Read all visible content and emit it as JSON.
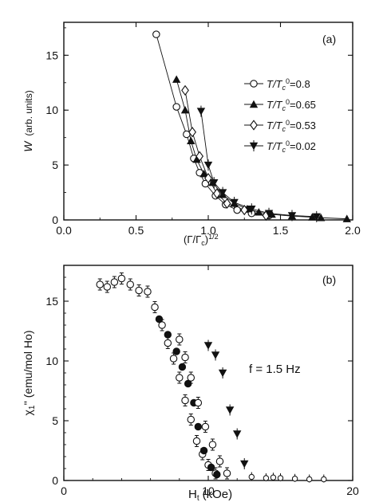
{
  "chart_data": [
    {
      "type": "line",
      "panel_label": "(a)",
      "xlabel": "(Γ/Γ",
      "xlabel_sub": "c",
      "xlabel_sup": "1/2",
      "ylabel": "W",
      "ylabel_unit": "(arb. units)",
      "xlim": [
        0.0,
        2.0
      ],
      "ylim": [
        0,
        18
      ],
      "x_ticks": [
        "0.0",
        "0.5",
        "1.0",
        "1.5",
        "2.0"
      ],
      "y_ticks": [
        "0",
        "5",
        "10",
        "15"
      ],
      "legend_position": "right",
      "series": [
        {
          "name": "T/T",
          "value_label": "=0.8",
          "marker": "circle-open",
          "x": [
            0.64,
            0.78,
            0.85,
            0.9,
            0.94,
            0.98,
            1.05,
            1.12,
            1.2,
            1.3,
            1.42
          ],
          "y": [
            16.9,
            10.3,
            7.8,
            5.6,
            4.3,
            3.3,
            2.2,
            1.4,
            0.9,
            0.6,
            0.4
          ]
        },
        {
          "name": "T/T",
          "value_label": "=0.65",
          "marker": "triangle-up-filled",
          "x": [
            0.78,
            0.84,
            0.88,
            0.92,
            0.97,
            1.03,
            1.1,
            1.18,
            1.27,
            1.35,
            1.44,
            1.58,
            1.72,
            1.78,
            1.96
          ],
          "y": [
            12.8,
            10.0,
            7.2,
            5.5,
            4.2,
            3.4,
            2.3,
            1.5,
            1.0,
            0.7,
            0.5,
            0.35,
            0.25,
            0.2,
            0.1
          ]
        },
        {
          "name": "T/T",
          "value_label": "=0.53",
          "marker": "diamond-open",
          "x": [
            0.84,
            0.89,
            0.94,
            1.0,
            1.06,
            1.13,
            1.25,
            1.4
          ],
          "y": [
            11.8,
            8.0,
            5.8,
            3.8,
            2.4,
            1.5,
            0.9,
            0.4
          ]
        },
        {
          "name": "T/T",
          "value_label": "=0.02",
          "marker": "triangle-down-filled",
          "x": [
            0.95,
            1.0,
            1.04,
            1.1,
            1.18,
            1.3,
            1.42,
            1.58,
            1.75
          ],
          "y": [
            9.9,
            5.0,
            3.4,
            2.5,
            1.6,
            1.0,
            0.6,
            0.4,
            0.3
          ]
        }
      ]
    },
    {
      "type": "scatter",
      "panel_label": "(b)",
      "xlabel": "H",
      "xlabel_sub": "t",
      "xlabel_unit": "(kOe)",
      "ylabel": "χ",
      "ylabel_sub": "1",
      "ylabel_unit": "'' (emu/mol Ho)",
      "annotation": "f = 1.5 Hz",
      "xlim": [
        0,
        20
      ],
      "ylim": [
        0,
        18
      ],
      "x_ticks": [
        "0",
        "10",
        "20"
      ],
      "y_ticks": [
        "0",
        "5",
        "10",
        "15"
      ],
      "series": [
        {
          "marker": "circle-errorbar-open",
          "x": [
            2.5,
            3.0,
            3.5,
            4.0,
            4.6,
            5.2,
            5.8,
            6.3,
            6.8,
            7.2,
            7.6,
            8.0,
            8.4,
            8.8,
            9.2,
            9.6,
            10.0,
            10.5
          ],
          "y": [
            16.4,
            16.2,
            16.6,
            16.9,
            16.4,
            15.9,
            15.8,
            14.5,
            13.0,
            11.5,
            10.2,
            8.6,
            6.7,
            5.1,
            3.3,
            2.2,
            1.3,
            0.6
          ]
        },
        {
          "marker": "circle-filled",
          "x": [
            6.6,
            7.2,
            7.8,
            8.2,
            8.6,
            9.0,
            9.3,
            9.7,
            10.2,
            10.6
          ],
          "y": [
            13.5,
            12.2,
            10.8,
            9.5,
            8.1,
            6.5,
            4.5,
            2.5,
            1.1,
            0.5
          ]
        },
        {
          "marker": "circle-errorbar-open",
          "x": [
            8.0,
            8.4,
            8.8,
            9.3,
            9.8,
            10.3,
            10.8,
            11.3
          ],
          "y": [
            11.8,
            10.3,
            8.6,
            6.5,
            4.5,
            3.0,
            1.6,
            0.6
          ]
        },
        {
          "marker": "triangle-down-filled",
          "x": [
            10.0,
            10.5,
            11.0,
            11.5,
            12.0,
            12.5
          ],
          "y": [
            11.3,
            10.5,
            9.0,
            5.9,
            3.9,
            1.4
          ]
        },
        {
          "marker": "mixed-tail",
          "x": [
            13.0,
            14.0,
            14.5,
            15.0,
            16.0,
            17.0,
            18.0
          ],
          "y": [
            0.3,
            0.2,
            0.25,
            0.2,
            0.15,
            0.1,
            0.1
          ]
        }
      ]
    }
  ]
}
